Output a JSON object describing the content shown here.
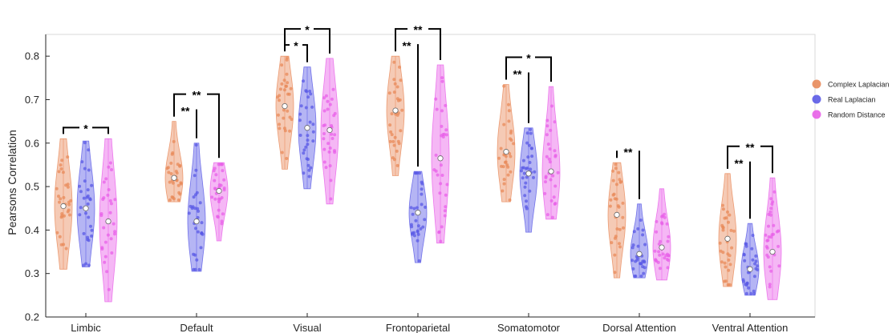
{
  "chart_data": {
    "type": "violin",
    "ylabel": "Pearsons Correlation",
    "ylim": [
      0.2,
      0.85
    ],
    "yticks": [
      "0.2",
      "0.3",
      "0.4",
      "0.5",
      "0.6",
      "0.7",
      "0.8"
    ],
    "categories": [
      "Limbic",
      "Default",
      "Visual",
      "Frontoparietal",
      "Somatomotor",
      "Dorsal Attention",
      "Ventral Attention"
    ],
    "legend_position": "right",
    "series": [
      {
        "name": "Complex Laplacian",
        "color": "#E8895A",
        "stats": [
          {
            "min": 0.31,
            "max": 0.61,
            "median": 0.455
          },
          {
            "min": 0.465,
            "max": 0.65,
            "median": 0.52
          },
          {
            "min": 0.54,
            "max": 0.8,
            "median": 0.685
          },
          {
            "min": 0.525,
            "max": 0.8,
            "median": 0.675
          },
          {
            "min": 0.465,
            "max": 0.735,
            "median": 0.58
          },
          {
            "min": 0.29,
            "max": 0.555,
            "median": 0.435
          },
          {
            "min": 0.27,
            "max": 0.53,
            "median": 0.38
          }
        ]
      },
      {
        "name": "Real Laplacian",
        "color": "#5A5AE6",
        "stats": [
          {
            "min": 0.315,
            "max": 0.605,
            "median": 0.45
          },
          {
            "min": 0.305,
            "max": 0.6,
            "median": 0.42
          },
          {
            "min": 0.495,
            "max": 0.775,
            "median": 0.635
          },
          {
            "min": 0.325,
            "max": 0.535,
            "median": 0.44
          },
          {
            "min": 0.395,
            "max": 0.635,
            "median": 0.53
          },
          {
            "min": 0.29,
            "max": 0.46,
            "median": 0.345
          },
          {
            "min": 0.25,
            "max": 0.415,
            "median": 0.31
          }
        ]
      },
      {
        "name": "Random Distance",
        "color": "#E860E8",
        "stats": [
          {
            "min": 0.235,
            "max": 0.61,
            "median": 0.42
          },
          {
            "min": 0.375,
            "max": 0.555,
            "median": 0.49
          },
          {
            "min": 0.46,
            "max": 0.795,
            "median": 0.63
          },
          {
            "min": 0.37,
            "max": 0.78,
            "median": 0.565
          },
          {
            "min": 0.425,
            "max": 0.73,
            "median": 0.535
          },
          {
            "min": 0.285,
            "max": 0.495,
            "median": 0.36
          },
          {
            "min": 0.24,
            "max": 0.52,
            "median": 0.35
          }
        ]
      }
    ],
    "significance": [
      {
        "category": 0,
        "from": 0,
        "to": 2,
        "label": "*"
      },
      {
        "category": 1,
        "from": 0,
        "to": 1,
        "label": "**"
      },
      {
        "category": 1,
        "from": 0,
        "to": 2,
        "label": "**"
      },
      {
        "category": 2,
        "from": 0,
        "to": 1,
        "label": "*"
      },
      {
        "category": 2,
        "from": 0,
        "to": 2,
        "label": "*"
      },
      {
        "category": 3,
        "from": 0,
        "to": 1,
        "label": "**"
      },
      {
        "category": 3,
        "from": 0,
        "to": 2,
        "label": "**"
      },
      {
        "category": 4,
        "from": 0,
        "to": 1,
        "label": "**"
      },
      {
        "category": 4,
        "from": 0,
        "to": 2,
        "label": "*"
      },
      {
        "category": 5,
        "from": 0,
        "to": 1,
        "label": "**"
      },
      {
        "category": 6,
        "from": 0,
        "to": 1,
        "label": "**"
      },
      {
        "category": 6,
        "from": 0,
        "to": 2,
        "label": "**"
      }
    ]
  }
}
